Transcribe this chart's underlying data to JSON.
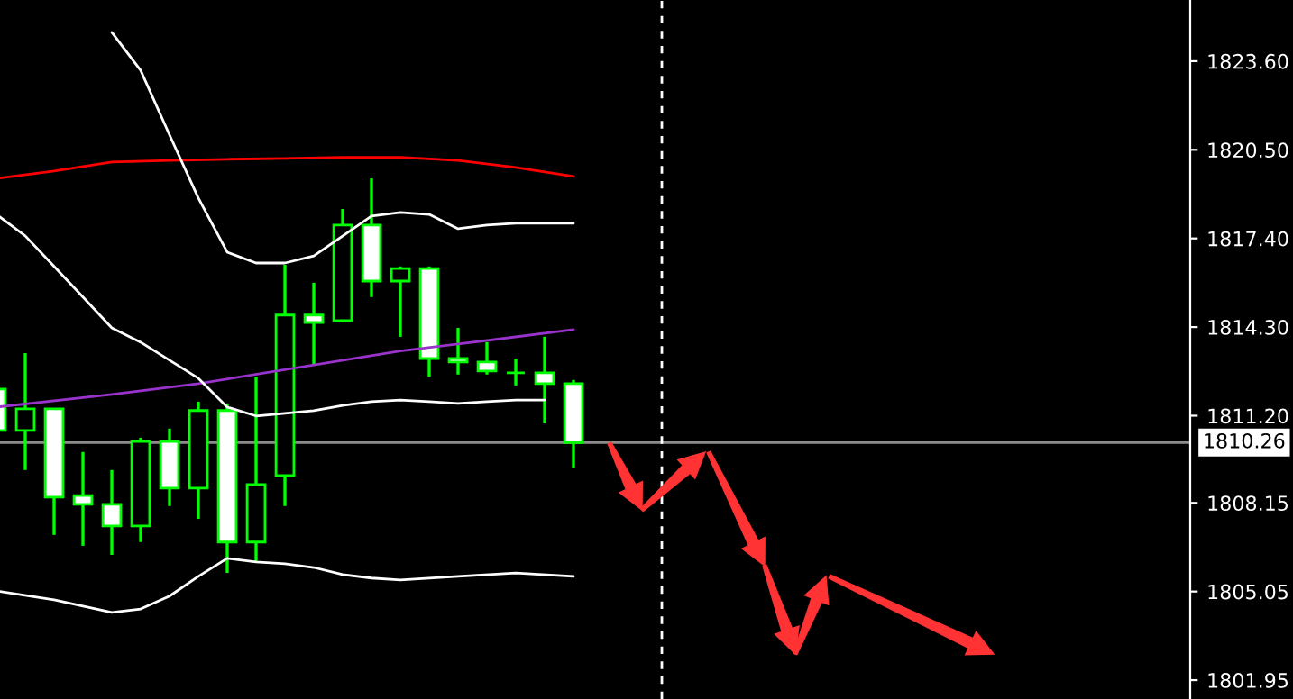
{
  "chart_data": {
    "type": "candlestick",
    "categories": [
      null,
      null,
      null,
      null,
      null,
      null,
      null,
      null,
      null,
      null,
      null,
      null,
      null,
      null,
      null,
      null,
      null,
      null,
      null,
      null,
      null,
      null,
      null,
      null,
      null,
      null,
      null,
      null,
      null,
      null,
      null,
      null,
      null,
      null,
      null,
      null,
      null,
      null,
      null,
      null,
      null,
      null
    ],
    "ohlc": [
      [
        1812.13,
        1812.13,
        1810.68,
        1810.68
      ],
      [
        1810.68,
        1813.39,
        1809.3,
        1811.44
      ],
      [
        1811.44,
        1811.44,
        1807.03,
        1808.35
      ],
      [
        1808.41,
        1809.93,
        1806.65,
        1808.1
      ],
      [
        1808.1,
        1809.3,
        1806.33,
        1807.34
      ],
      [
        1807.34,
        1810.43,
        1806.78,
        1810.3
      ],
      [
        1810.3,
        1810.75,
        1808.04,
        1808.67
      ],
      [
        1808.67,
        1811.69,
        1807.59,
        1811.38
      ],
      [
        1811.38,
        1811.63,
        1805.7,
        1806.78
      ],
      [
        1806.78,
        1812.57,
        1806.08,
        1808.79
      ],
      [
        1809.11,
        1816.48,
        1808.04,
        1814.72
      ],
      [
        1814.72,
        1815.85,
        1812.95,
        1814.46
      ],
      [
        1814.53,
        1818.43,
        1814.46,
        1817.87
      ],
      [
        1817.87,
        1819.5,
        1815.35,
        1815.91
      ],
      [
        1815.91,
        1816.42,
        1813.96,
        1816.35
      ],
      [
        1816.35,
        1816.42,
        1812.57,
        1813.2
      ],
      [
        1813.2,
        1814.27,
        1812.64,
        1813.08
      ],
      [
        1813.08,
        1813.77,
        1812.64,
        1812.76
      ],
      [
        1812.7,
        1813.2,
        1812.26,
        1812.7
      ],
      [
        1812.7,
        1813.96,
        1810.93,
        1812.32
      ],
      [
        1812.32,
        1812.45,
        1809.36,
        1810.26
      ],
      null,
      null,
      null,
      null,
      null,
      null,
      null,
      null,
      null,
      null,
      null,
      null,
      null,
      null,
      null,
      null,
      null,
      null,
      null,
      null,
      null
    ],
    "series": [
      {
        "type": "line",
        "color": "#ff0000",
        "values": [
          1819.5,
          null,
          1819.76,
          null,
          1820.07,
          null,
          1820.13,
          null,
          1820.17,
          null,
          1820.2,
          null,
          1820.24,
          null,
          1820.24,
          null,
          1820.13,
          null,
          1819.88,
          null,
          1819.57,
          null,
          null,
          null,
          null,
          null,
          null,
          null,
          null,
          null,
          null,
          null,
          null,
          null,
          null,
          null,
          null,
          null,
          null,
          null,
          null,
          null
        ]
      },
      {
        "type": "line",
        "color": "#9933cc",
        "values": [
          1811.5,
          null,
          null,
          null,
          1811.94,
          null,
          null,
          1812.32,
          null,
          null,
          null,
          null,
          null,
          null,
          1813.46,
          null,
          null,
          1813.83,
          null,
          null,
          1814.21,
          null,
          null,
          null,
          null,
          null,
          null,
          null,
          null,
          null,
          null,
          null,
          null,
          null,
          null,
          null,
          null,
          null,
          null,
          null,
          null,
          null
        ]
      },
      {
        "type": "line",
        "color": "#ffffff",
        "values": [
          null,
          null,
          null,
          null,
          1824.61,
          1823.28,
          1821.02,
          1818.81,
          1816.92,
          1816.54,
          1816.54,
          1816.79,
          null,
          1818.18,
          1818.31,
          1818.24,
          1817.74,
          1817.87,
          1817.93,
          1817.93,
          1817.93,
          null,
          null,
          null,
          null,
          null,
          null,
          null,
          null,
          null,
          null,
          null,
          null,
          null,
          null,
          null,
          null,
          null,
          null,
          null,
          null,
          null
        ]
      },
      {
        "type": "line",
        "color": "#ffffff",
        "values": [
          1818.24,
          1817.49,
          1816.42,
          1815.35,
          1814.27,
          1813.77,
          1813.14,
          1812.51,
          1811.5,
          1811.19,
          null,
          1811.38,
          1811.56,
          1811.69,
          1811.75,
          1811.69,
          1811.63,
          1811.69,
          1811.75,
          1811.75,
          null,
          null,
          null,
          null,
          null,
          null,
          null,
          null,
          null,
          null,
          null,
          null,
          null,
          null,
          null,
          null,
          null,
          null,
          null,
          null,
          null,
          null
        ]
      },
      {
        "type": "line",
        "color": "#ffffff",
        "values": [
          1805.07,
          null,
          1804.76,
          null,
          1804.32,
          1804.44,
          1804.89,
          1805.58,
          1806.21,
          1806.08,
          1806.02,
          1805.89,
          1805.64,
          1805.52,
          1805.45,
          null,
          1805.58,
          null,
          1805.7,
          null,
          1805.58,
          null,
          null,
          null,
          null,
          null,
          null,
          null,
          null,
          null,
          null,
          null,
          null,
          null,
          null,
          null,
          null,
          null,
          null,
          null,
          null,
          null
        ]
      }
    ],
    "ylim": [
      1801.29,
      1825.74
    ],
    "yticks": [
      1801.95,
      1805.05,
      1808.15,
      {
        "value": 1811.2,
        "label": "1811.20"
      },
      {
        "value": 1814.3,
        "label": "1814.30"
      },
      {
        "value": 1817.4,
        "label": "1817.40"
      },
      {
        "value": 1820.5,
        "label": "1820.50"
      },
      {
        "value": 1823.6,
        "label": "1823.60"
      }
    ],
    "ref_lines": [
      {
        "axis": "y",
        "value": 1810.26,
        "label": "1810.26",
        "color": "#8c8c8c",
        "line_style": "solid"
      }
    ],
    "tick_labels": "y",
    "grid": false
  }
}
